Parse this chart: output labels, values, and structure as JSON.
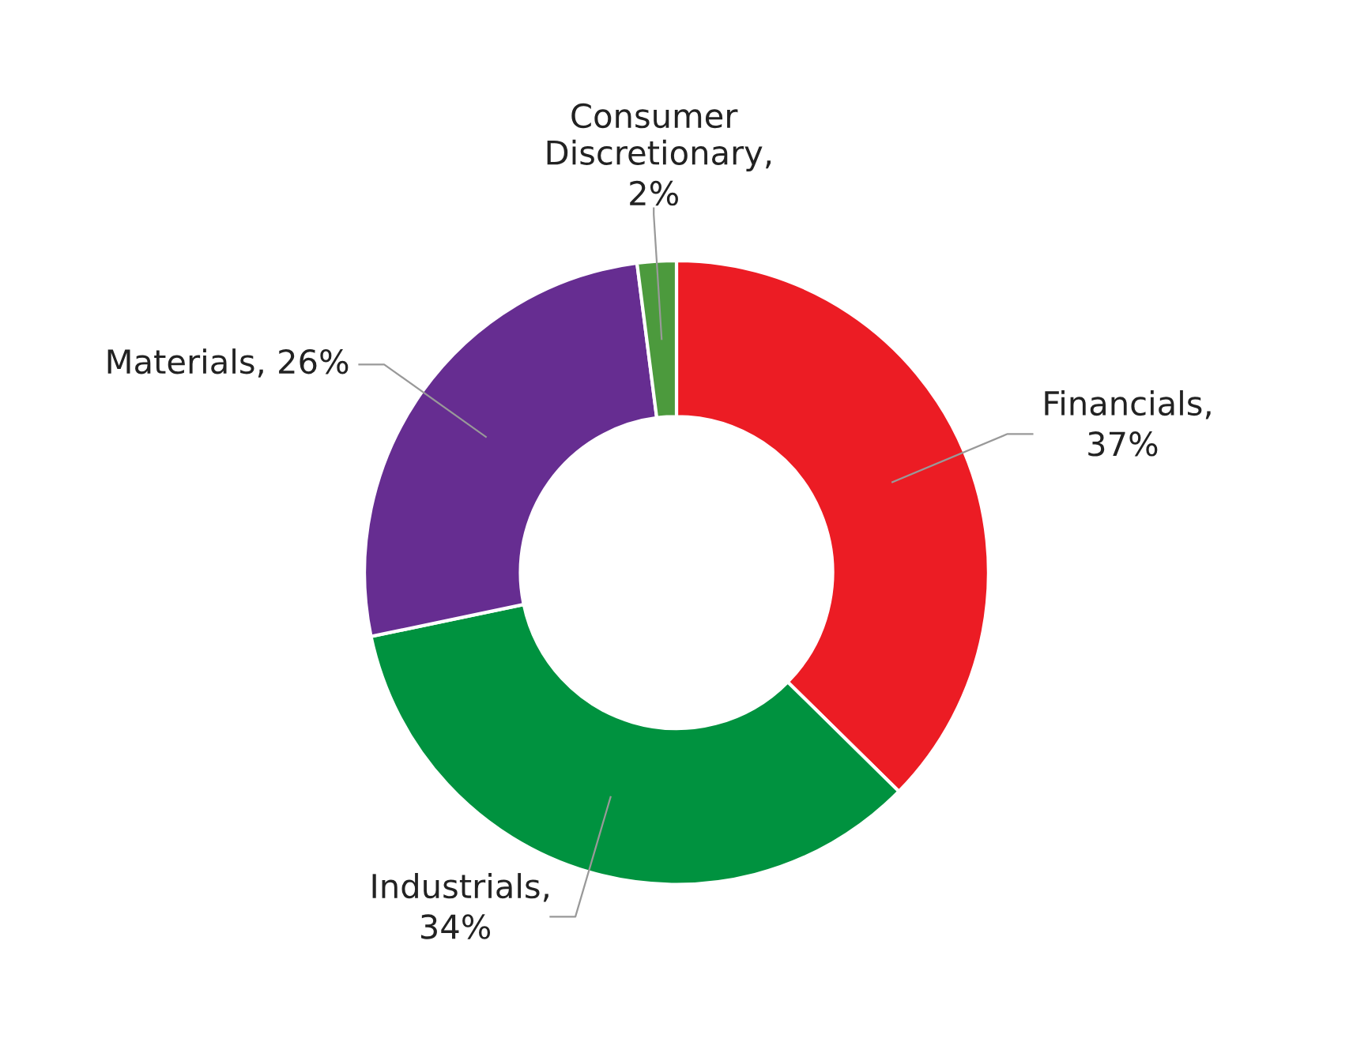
{
  "chart_data": {
    "type": "donut",
    "categories": [
      "Financials",
      "Industrials",
      "Materials",
      "Consumer Discretionary"
    ],
    "values": [
      37,
      34,
      26,
      2
    ],
    "colors": [
      "#ec1c24",
      "#00923f",
      "#662d91",
      "#4c9a3d"
    ],
    "value_labels": [
      ", 37%",
      ", 34%",
      ", 26%",
      ", 2%"
    ],
    "legend": false
  }
}
